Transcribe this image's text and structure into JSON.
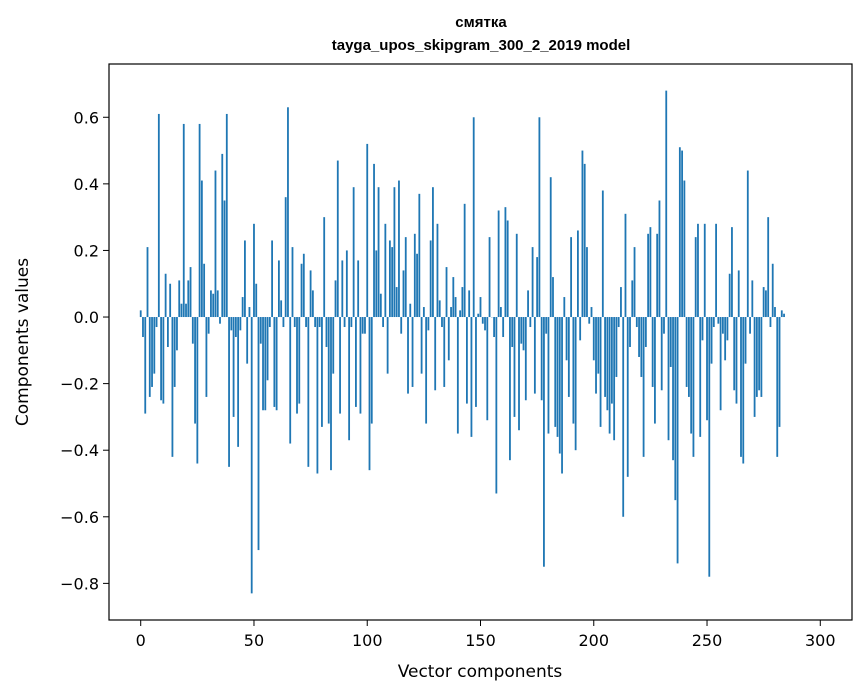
{
  "chart_data": {
    "type": "bar",
    "title": "смятка",
    "subtitle": "tayga_upos_skipgram_300_2_2019 model",
    "xlabel": "Vector components",
    "ylabel": "Components values",
    "xlim": [
      -14,
      314
    ],
    "ylim": [
      -0.91,
      0.76
    ],
    "x_ticks": [
      0,
      50,
      100,
      150,
      200,
      250,
      300
    ],
    "x_tick_labels": [
      "0",
      "50",
      "100",
      "150",
      "200",
      "250",
      "300"
    ],
    "y_ticks": [
      -0.8,
      -0.6,
      -0.4,
      -0.2,
      0.0,
      0.2,
      0.4,
      0.6
    ],
    "y_tick_labels": [
      "−0.8",
      "−0.6",
      "−0.4",
      "−0.2",
      "0.0",
      "0.2",
      "0.4",
      "0.6"
    ],
    "grid": false,
    "color": "#1f77b4",
    "values": [
      0.02,
      -0.06,
      -0.29,
      0.21,
      -0.24,
      -0.21,
      -0.17,
      -0.03,
      0.61,
      -0.25,
      -0.26,
      0.13,
      -0.09,
      0.1,
      -0.42,
      -0.21,
      -0.1,
      0.11,
      0.04,
      0.58,
      0.04,
      0.11,
      0.15,
      -0.08,
      -0.32,
      -0.44,
      0.58,
      0.41,
      0.16,
      -0.24,
      -0.05,
      0.08,
      0.07,
      0.44,
      0.08,
      -0.02,
      0.49,
      0.35,
      0.61,
      -0.45,
      -0.04,
      -0.3,
      -0.06,
      -0.39,
      -0.04,
      0.06,
      0.23,
      -0.14,
      0.03,
      -0.83,
      0.28,
      0.1,
      -0.7,
      -0.08,
      -0.28,
      -0.28,
      -0.19,
      -0.03,
      0.23,
      -0.27,
      -0.28,
      0.17,
      0.05,
      -0.03,
      0.36,
      0.63,
      -0.38,
      0.21,
      -0.03,
      -0.29,
      -0.26,
      0.16,
      0.19,
      -0.03,
      -0.45,
      0.14,
      0.08,
      -0.03,
      -0.47,
      -0.03,
      -0.33,
      0.3,
      -0.09,
      -0.32,
      -0.46,
      -0.17,
      0.11,
      0.47,
      -0.29,
      0.17,
      -0.03,
      0.2,
      -0.37,
      -0.03,
      0.39,
      -0.27,
      0.17,
      -0.29,
      -0.05,
      -0.05,
      0.52,
      -0.46,
      -0.32,
      0.46,
      0.2,
      0.39,
      0.07,
      -0.03,
      0.28,
      -0.17,
      0.23,
      0.21,
      0.39,
      0.09,
      0.41,
      -0.05,
      0.14,
      0.24,
      -0.23,
      0.04,
      -0.21,
      0.25,
      0.19,
      0.37,
      -0.17,
      0.03,
      -0.32,
      -0.04,
      0.23,
      0.39,
      -0.22,
      0.28,
      0.05,
      -0.03,
      -0.21,
      0.15,
      -0.13,
      0.03,
      0.12,
      0.06,
      -0.35,
      0.02,
      0.09,
      0.34,
      -0.26,
      0.08,
      -0.36,
      0.6,
      -0.27,
      0.01,
      0.06,
      -0.02,
      -0.04,
      -0.31,
      0.24,
      0.0,
      -0.06,
      -0.53,
      0.32,
      0.03,
      -0.06,
      0.33,
      0.29,
      -0.43,
      -0.09,
      -0.3,
      0.25,
      -0.34,
      -0.08,
      -0.1,
      -0.25,
      0.08,
      -0.03,
      0.21,
      -0.23,
      0.18,
      0.6,
      -0.25,
      -0.75,
      -0.05,
      -0.35,
      0.42,
      0.12,
      -0.33,
      -0.36,
      -0.41,
      -0.47,
      0.06,
      -0.13,
      -0.24,
      0.24,
      -0.32,
      -0.4,
      0.26,
      -0.07,
      0.5,
      0.46,
      0.21,
      -0.02,
      0.03,
      -0.13,
      -0.23,
      -0.17,
      -0.33,
      0.38,
      -0.24,
      -0.28,
      -0.35,
      -0.26,
      -0.37,
      -0.18,
      -0.03,
      0.09,
      -0.6,
      0.31,
      -0.48,
      -0.09,
      0.11,
      0.21,
      -0.03,
      -0.12,
      -0.18,
      -0.42,
      -0.09,
      0.25,
      0.27,
      -0.21,
      -0.32,
      0.25,
      0.35,
      -0.22,
      -0.05,
      0.68,
      -0.37,
      -0.15,
      -0.43,
      -0.55,
      -0.74,
      0.51,
      0.5,
      0.41,
      -0.21,
      -0.24,
      -0.35,
      -0.42,
      0.24,
      0.28,
      -0.36,
      -0.07,
      0.28,
      -0.31,
      -0.78,
      -0.14,
      -0.03,
      0.28,
      -0.02,
      -0.28,
      -0.05,
      -0.13,
      -0.07,
      0.13,
      0.27,
      -0.22,
      -0.26,
      0.14,
      -0.42,
      -0.44,
      -0.14,
      0.44,
      -0.05,
      0.11,
      -0.3,
      -0.24,
      -0.22,
      -0.24,
      0.09,
      0.08,
      0.3,
      -0.03,
      0.16,
      0.03,
      -0.42,
      -0.33,
      0.02,
      0.01
    ]
  }
}
